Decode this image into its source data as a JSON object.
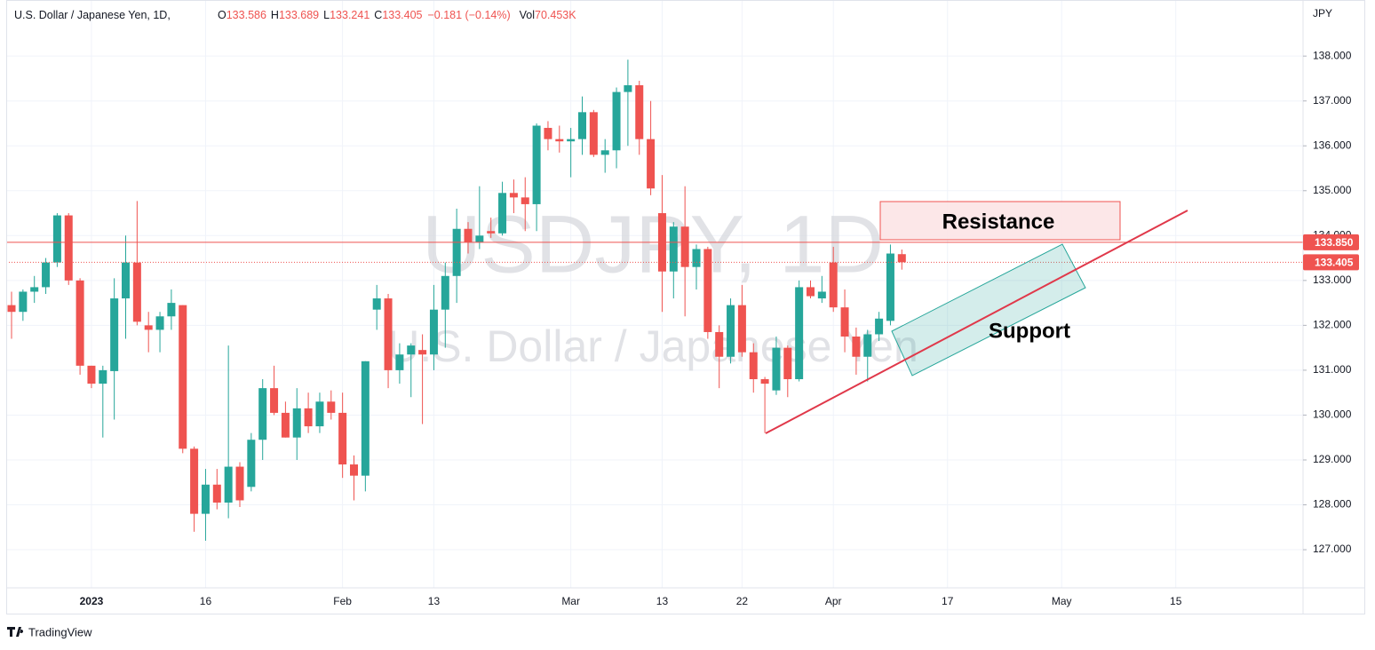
{
  "chart_data": {
    "type": "candlestick",
    "title": "U.S. Dollar / Japanese Yen, 1D,",
    "ohlc_legend": [
      {
        "label": "O",
        "value": "133.586"
      },
      {
        "label": "H",
        "value": "133.689"
      },
      {
        "label": "L",
        "value": "133.241"
      },
      {
        "label": "C",
        "value": "133.405"
      }
    ],
    "change": "−0.181 (−0.14%)",
    "volume": {
      "label": "Vol",
      "value": "70.453K"
    },
    "watermark": {
      "symbol": "USDJPY, 1D",
      "name": "U.S. Dollar / Japanese Yen"
    },
    "currency": "JPY",
    "brand": "TradingView",
    "annotations": {
      "resistance": "Resistance",
      "support": "Support"
    },
    "up_color": "#26a69a",
    "down_color": "#ef5350",
    "grid": true,
    "ylim": [
      126.15,
      139.25
    ],
    "yticks": [
      {
        "value": 127,
        "label": "127.000"
      },
      {
        "value": 128,
        "label": "128.000"
      },
      {
        "value": 129,
        "label": "129.000"
      },
      {
        "value": 130,
        "label": "130.000"
      },
      {
        "value": 131,
        "label": "131.000"
      },
      {
        "value": 132,
        "label": "132.000"
      },
      {
        "value": 133,
        "label": "133.000"
      },
      {
        "value": 134,
        "label": "134.000"
      },
      {
        "value": 135,
        "label": "135.000"
      },
      {
        "value": 136,
        "label": "136.000"
      },
      {
        "value": 137,
        "label": "137.000"
      },
      {
        "value": 138,
        "label": "138.000"
      }
    ],
    "price_lines": [
      {
        "value": 133.85,
        "label": "133.850"
      },
      {
        "value": 133.405,
        "label": "133.405"
      }
    ],
    "categories": [
      null,
      null,
      null,
      null,
      null,
      null,
      null,
      "2023",
      null,
      null,
      null,
      null,
      null,
      null,
      null,
      null,
      null,
      "16",
      null,
      null,
      null,
      null,
      null,
      null,
      null,
      null,
      null,
      null,
      null,
      "Feb",
      null,
      null,
      null,
      null,
      null,
      null,
      null,
      "13",
      null,
      null,
      null,
      null,
      null,
      null,
      null,
      null,
      null,
      null,
      null,
      "Mar",
      null,
      null,
      null,
      null,
      null,
      null,
      null,
      "13",
      null,
      null,
      null,
      null,
      null,
      null,
      "22",
      null,
      null,
      null,
      null,
      null,
      null,
      null,
      "Apr",
      null,
      null,
      null,
      null,
      null,
      null,
      null,
      null,
      null,
      "17",
      null,
      null,
      null,
      null,
      null,
      null,
      null,
      null,
      null,
      "May",
      null,
      null,
      null,
      null,
      null,
      null,
      null,
      null,
      null,
      "15"
    ],
    "open": [
      132.45,
      132.3,
      132.75,
      132.85,
      133.4,
      134.45,
      133.0,
      131.1,
      130.7,
      130.98,
      132.6,
      133.4,
      132.0,
      131.9,
      132.2,
      132.45,
      129.25,
      127.8,
      128.45,
      128.05,
      128.85,
      128.4,
      129.45,
      130.6,
      130.05,
      129.5,
      130.15,
      129.75,
      130.3,
      130.05,
      128.9,
      128.65,
      132.35,
      132.6,
      131.0,
      131.35,
      131.45,
      131.35,
      132.35,
      133.1,
      134.15,
      133.85,
      134.1,
      134.05,
      134.95,
      134.85,
      134.7,
      136.4,
      136.15,
      136.1,
      136.15,
      136.75,
      135.8,
      135.9,
      137.2,
      137.35,
      136.15,
      134.5,
      133.2,
      134.2,
      133.3,
      133.7,
      131.85,
      131.3,
      132.45,
      131.4,
      130.8,
      130.55,
      131.5,
      130.8,
      132.85,
      132.6,
      133.4,
      132.4,
      131.75,
      131.3,
      131.8,
      132.1,
      133.586,
      null,
      null,
      null,
      null,
      null,
      null,
      null,
      null,
      null,
      null,
      null,
      null,
      null,
      null,
      null,
      null,
      null,
      null,
      null,
      null,
      null,
      null,
      null,
      null
    ],
    "high": [
      132.75,
      132.8,
      133.1,
      133.5,
      134.5,
      134.5,
      133.05,
      131.1,
      131.1,
      133.05,
      134.0,
      134.77,
      132.3,
      132.3,
      132.8,
      132.45,
      129.3,
      128.8,
      128.8,
      131.55,
      128.95,
      129.6,
      130.8,
      131.1,
      130.3,
      130.6,
      130.5,
      130.5,
      130.55,
      130.5,
      129.1,
      131.2,
      132.9,
      132.7,
      131.6,
      131.6,
      131.8,
      132.9,
      133.4,
      134.6,
      134.3,
      135.1,
      134.4,
      135.2,
      135.25,
      135.3,
      136.5,
      136.55,
      136.45,
      136.4,
      137.1,
      136.8,
      136.15,
      137.3,
      137.92,
      137.45,
      137.0,
      135.35,
      134.3,
      135.1,
      133.8,
      133.75,
      132.0,
      132.6,
      132.9,
      131.6,
      130.85,
      131.75,
      131.55,
      133.0,
      133.0,
      133.1,
      133.75,
      132.8,
      131.95,
      131.9,
      132.3,
      133.8,
      133.689,
      null,
      null,
      null,
      null,
      null,
      null,
      null,
      null,
      null,
      null,
      null,
      null,
      null,
      null,
      null,
      null,
      null,
      null,
      null,
      null,
      null,
      null,
      null,
      null
    ],
    "low": [
      131.7,
      132.1,
      132.5,
      132.7,
      133.3,
      132.9,
      130.9,
      130.6,
      129.5,
      129.9,
      131.7,
      132.0,
      131.4,
      131.4,
      131.9,
      129.15,
      127.4,
      127.2,
      127.9,
      127.7,
      127.95,
      128.3,
      129.0,
      130.0,
      129.5,
      129.0,
      129.6,
      129.6,
      129.9,
      128.6,
      128.1,
      128.3,
      131.9,
      130.6,
      130.7,
      130.4,
      129.8,
      131.0,
      131.5,
      132.5,
      133.6,
      133.7,
      133.95,
      134.0,
      134.5,
      134.1,
      134.1,
      135.9,
      135.85,
      135.3,
      135.8,
      135.75,
      135.4,
      135.5,
      136.0,
      135.8,
      134.9,
      132.3,
      132.6,
      132.2,
      132.8,
      131.7,
      130.6,
      131.15,
      131.3,
      130.5,
      129.6,
      130.45,
      130.4,
      130.75,
      132.6,
      132.5,
      132.3,
      131.4,
      130.9,
      130.75,
      131.65,
      132.0,
      133.241,
      null,
      null,
      null,
      null,
      null,
      null,
      null,
      null,
      null,
      null,
      null,
      null,
      null,
      null,
      null,
      null,
      null,
      null,
      null,
      null,
      null,
      null,
      null,
      null
    ],
    "close": [
      132.3,
      132.75,
      132.85,
      133.4,
      134.45,
      133.0,
      131.1,
      130.7,
      131.0,
      132.6,
      133.4,
      132.08,
      131.9,
      132.2,
      132.5,
      129.25,
      127.8,
      128.45,
      128.05,
      128.85,
      128.1,
      129.45,
      130.6,
      130.05,
      129.5,
      130.15,
      129.75,
      130.3,
      130.05,
      128.9,
      128.65,
      131.2,
      132.6,
      131.0,
      131.35,
      131.55,
      131.35,
      132.35,
      133.1,
      134.15,
      133.85,
      134.0,
      134.05,
      134.95,
      134.85,
      134.7,
      136.45,
      136.15,
      136.1,
      136.15,
      136.75,
      135.8,
      135.9,
      137.2,
      137.35,
      136.15,
      135.05,
      133.2,
      134.2,
      133.3,
      133.7,
      131.85,
      131.3,
      132.45,
      131.4,
      130.8,
      130.7,
      131.5,
      130.8,
      132.85,
      132.65,
      132.75,
      132.4,
      131.75,
      131.3,
      131.8,
      132.15,
      133.6,
      133.405,
      null,
      null,
      null,
      null,
      null,
      null,
      null,
      null,
      null,
      null,
      null,
      null,
      null,
      null,
      null,
      null,
      null,
      null,
      null,
      null,
      null,
      null,
      null,
      null
    ]
  }
}
